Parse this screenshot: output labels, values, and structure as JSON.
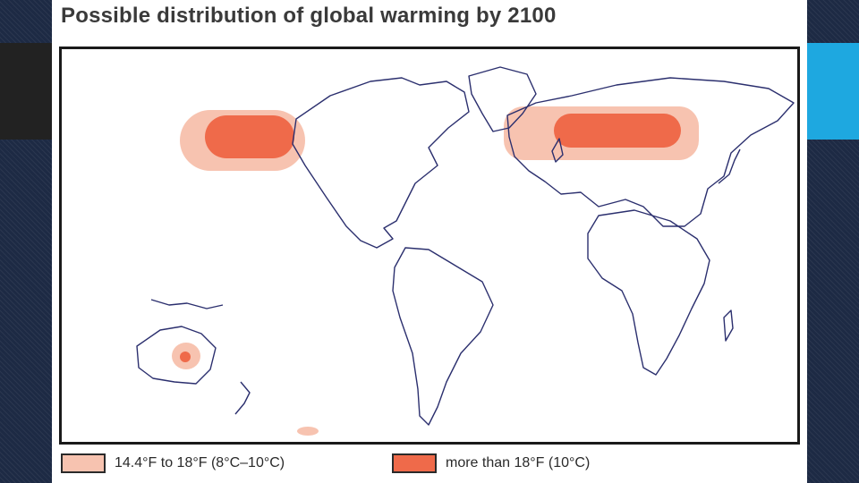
{
  "slide": {
    "title": "Possible distribution of global warming by 2100"
  },
  "map": {
    "land_outline_color": "#2b2f6e",
    "zones": [
      {
        "id": "alaska-siberia",
        "level": "more than 18°F"
      },
      {
        "id": "northern-eurasia",
        "level": "more than 18°F"
      },
      {
        "id": "central-australia",
        "level": "more than 18°F"
      },
      {
        "id": "southern-ocean-spot",
        "level": "14.4°F to 18°F"
      }
    ]
  },
  "legend": {
    "items": [
      {
        "label": "14.4°F to 18°F (8°C–10°C)",
        "color": "#f7c3b0"
      },
      {
        "label": "more than 18°F (10°C)",
        "color": "#ef6a4a"
      }
    ]
  },
  "colors": {
    "light_zone": "#f7c3b0",
    "dark_zone": "#ef6a4a",
    "accent": "#1ea8e0"
  }
}
